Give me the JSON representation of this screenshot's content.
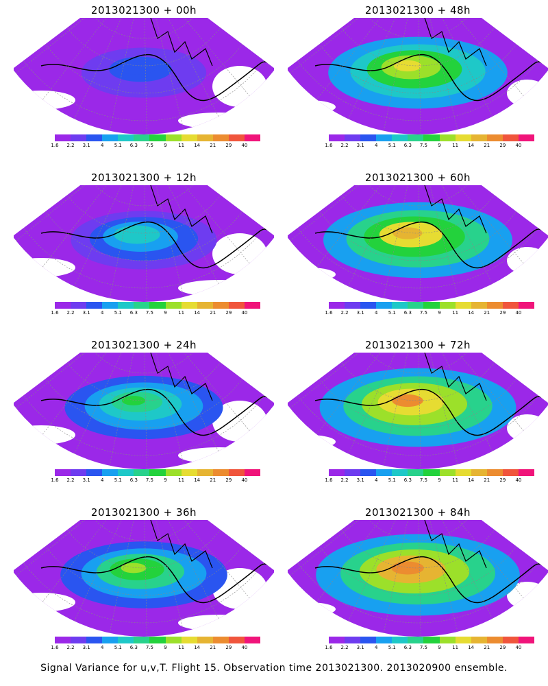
{
  "colorbar": {
    "labels": [
      "1.6",
      "2.2",
      "3.1",
      "4",
      "5.1",
      "6.3",
      "7.5",
      "9",
      "11",
      "14",
      "21",
      "29",
      "40"
    ],
    "colors": [
      "#9b28e8",
      "#6e3cf0",
      "#2a55f0",
      "#18a0f0",
      "#1ec8c8",
      "#28d28c",
      "#23d23c",
      "#9ce02a",
      "#e6dc32",
      "#e6b432",
      "#ec8c30",
      "#f0553c",
      "#f0147a"
    ]
  },
  "panels": [
    {
      "title": "2013021300 + 00h",
      "level": 0.18
    },
    {
      "title": "2013021300 + 48h",
      "level": 0.62
    },
    {
      "title": "2013021300 + 12h",
      "level": 0.35
    },
    {
      "title": "2013021300 + 60h",
      "level": 0.7
    },
    {
      "title": "2013021300 + 24h",
      "level": 0.45
    },
    {
      "title": "2013021300 + 72h",
      "level": 0.76
    },
    {
      "title": "2013021300 + 36h",
      "level": 0.52
    },
    {
      "title": "2013021300 + 84h",
      "level": 0.82
    }
  ],
  "caption": "Signal Variance for u,v,T. Flight 15. Observation time 2013021300. 2013020900 ensemble."
}
